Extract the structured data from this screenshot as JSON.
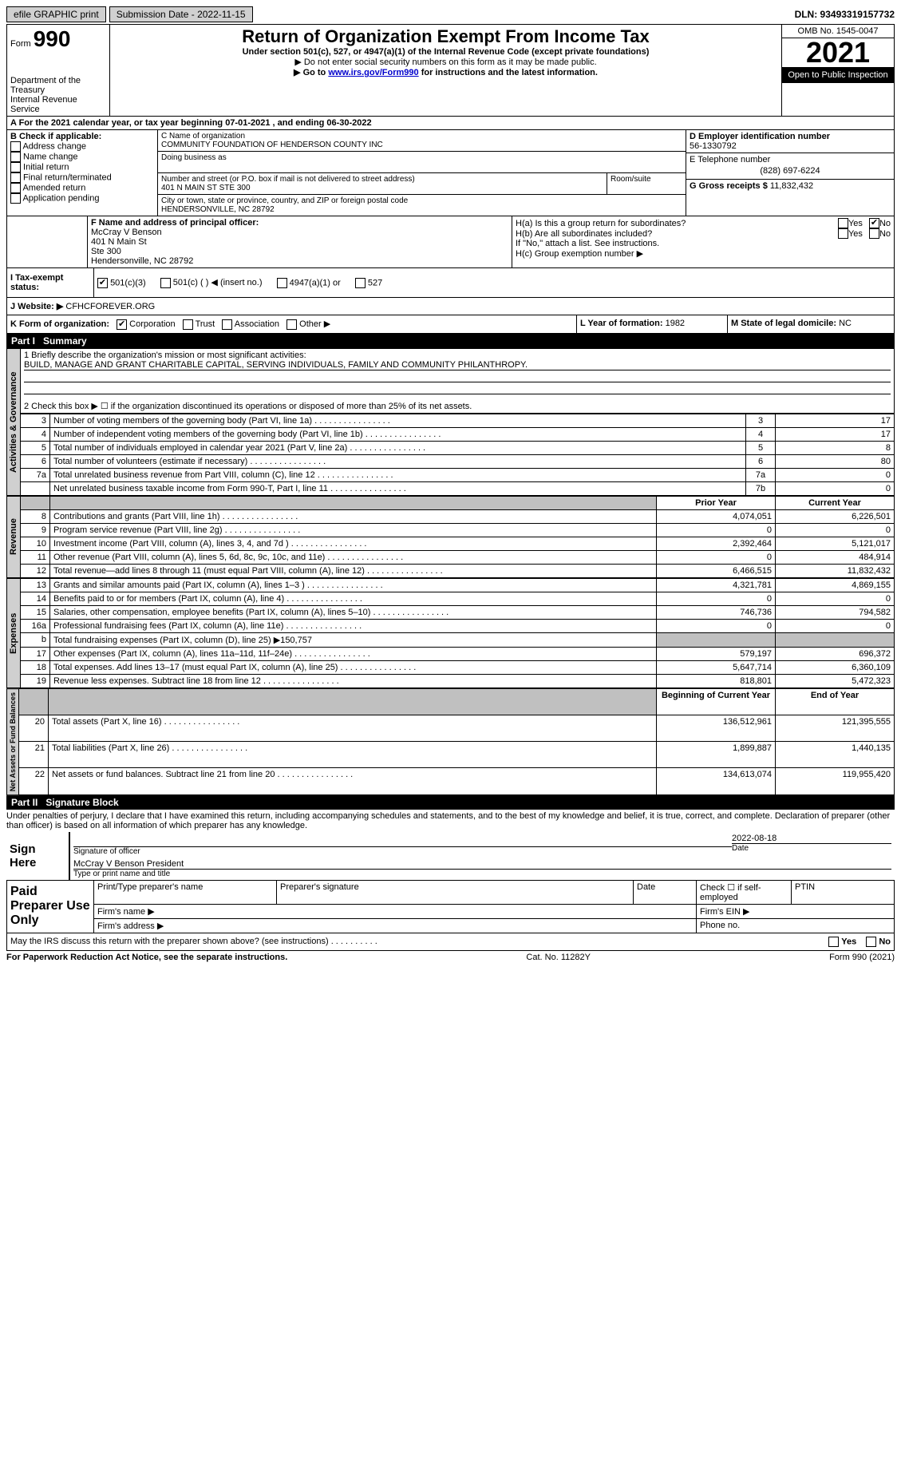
{
  "topbar": {
    "efile": "efile GRAPHIC print",
    "submission": "Submission Date - 2022-11-15",
    "dln": "DLN: 93493319157732"
  },
  "header": {
    "form_label": "Form",
    "form_number": "990",
    "dept": "Department of the Treasury\nInternal Revenue Service",
    "title": "Return of Organization Exempt From Income Tax",
    "sub1": "Under section 501(c), 527, or 4947(a)(1) of the Internal Revenue Code (except private foundations)",
    "sub2": "▶ Do not enter social security numbers on this form as it may be made public.",
    "sub3_prefix": "▶ Go to ",
    "sub3_link": "www.irs.gov/Form990",
    "sub3_suffix": " for instructions and the latest information.",
    "omb": "OMB No. 1545-0047",
    "year": "2021",
    "inspection": "Open to Public Inspection"
  },
  "lineA": "A For the 2021 calendar year, or tax year beginning 07-01-2021   , and ending 06-30-2022",
  "boxB": {
    "label": "B Check if applicable:",
    "opts": [
      "Address change",
      "Name change",
      "Initial return",
      "Final return/terminated",
      "Amended return",
      "Application pending"
    ]
  },
  "boxC": {
    "label": "C Name of organization",
    "name": "COMMUNITY FOUNDATION OF HENDERSON COUNTY INC",
    "dba_label": "Doing business as",
    "addr_label": "Number and street (or P.O. box if mail is not delivered to street address)",
    "room_label": "Room/suite",
    "addr": "401 N MAIN ST STE 300",
    "city_label": "City or town, state or province, country, and ZIP or foreign postal code",
    "city": "HENDERSONVILLE, NC  28792"
  },
  "boxD": {
    "label": "D Employer identification number",
    "val": "56-1330792"
  },
  "boxE": {
    "label": "E Telephone number",
    "val": "(828) 697-6224"
  },
  "boxG": {
    "label": "G Gross receipts $",
    "val": "11,832,432"
  },
  "boxF": {
    "label": "F Name and address of principal officer:",
    "lines": [
      "McCray V Benson",
      "401 N Main St",
      "Ste 300",
      "Hendersonville, NC  28792"
    ]
  },
  "boxH": {
    "a": "H(a)  Is this a group return for subordinates?",
    "b": "H(b)  Are all subordinates included?",
    "note": "If \"No,\" attach a list. See instructions.",
    "c": "H(c)  Group exemption number ▶"
  },
  "boxI": {
    "label": "I  Tax-exempt status:",
    "opts": [
      "501(c)(3)",
      "501(c) (  ) ◀ (insert no.)",
      "4947(a)(1) or",
      "527"
    ]
  },
  "boxJ": {
    "label": "J Website: ▶",
    "val": "CFHCFOREVER.ORG"
  },
  "boxK": {
    "label": "K Form of organization:",
    "opts": [
      "Corporation",
      "Trust",
      "Association",
      "Other ▶"
    ]
  },
  "boxL": {
    "label": "L Year of formation:",
    "val": "1982"
  },
  "boxM": {
    "label": "M State of legal domicile:",
    "val": "NC"
  },
  "part1": {
    "title": "Part I",
    "sub": "Summary",
    "mission_label": "1   Briefly describe the organization's mission or most significant activities:",
    "mission": "BUILD, MANAGE AND GRANT CHARITABLE CAPITAL, SERVING INDIVIDUALS, FAMILY AND COMMUNITY PHILANTHROPY.",
    "line2": "2   Check this box ▶ ☐ if the organization discontinued its operations or disposed of more than 25% of its net assets.",
    "gov_label": "Activities & Governance",
    "rev_label": "Revenue",
    "exp_label": "Expenses",
    "net_label": "Net Assets or Fund Balances",
    "rows_gov": [
      {
        "n": "3",
        "t": "Number of voting members of the governing body (Part VI, line 1a)",
        "b": "3",
        "v": "17"
      },
      {
        "n": "4",
        "t": "Number of independent voting members of the governing body (Part VI, line 1b)",
        "b": "4",
        "v": "17"
      },
      {
        "n": "5",
        "t": "Total number of individuals employed in calendar year 2021 (Part V, line 2a)",
        "b": "5",
        "v": "8"
      },
      {
        "n": "6",
        "t": "Total number of volunteers (estimate if necessary)",
        "b": "6",
        "v": "80"
      },
      {
        "n": "7a",
        "t": "Total unrelated business revenue from Part VIII, column (C), line 12",
        "b": "7a",
        "v": "0"
      },
      {
        "n": "",
        "t": "Net unrelated business taxable income from Form 990-T, Part I, line 11",
        "b": "7b",
        "v": "0"
      }
    ],
    "col_prior": "Prior Year",
    "col_current": "Current Year",
    "rows_rev": [
      {
        "n": "8",
        "t": "Contributions and grants (Part VIII, line 1h)",
        "p": "4,074,051",
        "c": "6,226,501"
      },
      {
        "n": "9",
        "t": "Program service revenue (Part VIII, line 2g)",
        "p": "0",
        "c": "0"
      },
      {
        "n": "10",
        "t": "Investment income (Part VIII, column (A), lines 3, 4, and 7d )",
        "p": "2,392,464",
        "c": "5,121,017"
      },
      {
        "n": "11",
        "t": "Other revenue (Part VIII, column (A), lines 5, 6d, 8c, 9c, 10c, and 11e)",
        "p": "0",
        "c": "484,914"
      },
      {
        "n": "12",
        "t": "Total revenue—add lines 8 through 11 (must equal Part VIII, column (A), line 12)",
        "p": "6,466,515",
        "c": "11,832,432"
      }
    ],
    "rows_exp": [
      {
        "n": "13",
        "t": "Grants and similar amounts paid (Part IX, column (A), lines 1–3 )",
        "p": "4,321,781",
        "c": "4,869,155"
      },
      {
        "n": "14",
        "t": "Benefits paid to or for members (Part IX, column (A), line 4)",
        "p": "0",
        "c": "0"
      },
      {
        "n": "15",
        "t": "Salaries, other compensation, employee benefits (Part IX, column (A), lines 5–10)",
        "p": "746,736",
        "c": "794,582"
      },
      {
        "n": "16a",
        "t": "Professional fundraising fees (Part IX, column (A), line 11e)",
        "p": "0",
        "c": "0"
      },
      {
        "n": "b",
        "t": "Total fundraising expenses (Part IX, column (D), line 25) ▶150,757",
        "p": "",
        "c": "",
        "shade": true
      },
      {
        "n": "17",
        "t": "Other expenses (Part IX, column (A), lines 11a–11d, 11f–24e)",
        "p": "579,197",
        "c": "696,372"
      },
      {
        "n": "18",
        "t": "Total expenses. Add lines 13–17 (must equal Part IX, column (A), line 25)",
        "p": "5,647,714",
        "c": "6,360,109"
      },
      {
        "n": "19",
        "t": "Revenue less expenses. Subtract line 18 from line 12",
        "p": "818,801",
        "c": "5,472,323"
      }
    ],
    "col_begin": "Beginning of Current Year",
    "col_end": "End of Year",
    "rows_net": [
      {
        "n": "20",
        "t": "Total assets (Part X, line 16)",
        "p": "136,512,961",
        "c": "121,395,555"
      },
      {
        "n": "21",
        "t": "Total liabilities (Part X, line 26)",
        "p": "1,899,887",
        "c": "1,440,135"
      },
      {
        "n": "22",
        "t": "Net assets or fund balances. Subtract line 21 from line 20",
        "p": "134,613,074",
        "c": "119,955,420"
      }
    ]
  },
  "part2": {
    "title": "Part II",
    "sub": "Signature Block",
    "decl": "Under penalties of perjury, I declare that I have examined this return, including accompanying schedules and statements, and to the best of my knowledge and belief, it is true, correct, and complete. Declaration of preparer (other than officer) is based on all information of which preparer has any knowledge.",
    "sign_here": "Sign Here",
    "sig_label": "Signature of officer",
    "date_label": "Date",
    "date_val": "2022-08-18",
    "name_val": "McCray V Benson  President",
    "name_label": "Type or print name and title",
    "paid": "Paid Preparer Use Only",
    "p_name": "Print/Type preparer's name",
    "p_sig": "Preparer's signature",
    "p_date": "Date",
    "p_check": "Check ☐ if self-employed",
    "p_ptin": "PTIN",
    "p_firm": "Firm's name  ▶",
    "p_ein": "Firm's EIN ▶",
    "p_addr": "Firm's address ▶",
    "p_phone": "Phone no.",
    "discuss": "May the IRS discuss this return with the preparer shown above? (see instructions)",
    "yes": "Yes",
    "no": "No"
  },
  "footer": {
    "left": "For Paperwork Reduction Act Notice, see the separate instructions.",
    "mid": "Cat. No. 11282Y",
    "right": "Form 990 (2021)"
  }
}
